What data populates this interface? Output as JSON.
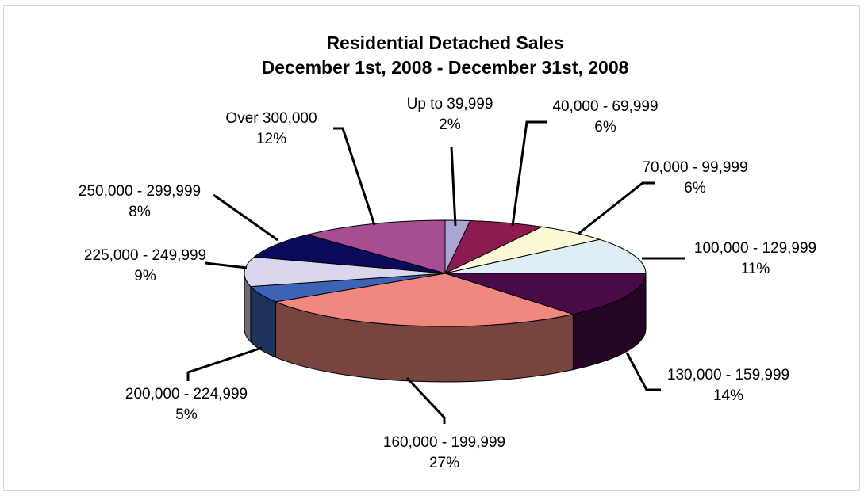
{
  "chart_data": {
    "type": "pie",
    "title": "Residential Detached Sales",
    "subtitle": "December 1st, 2008 - December 31st, 2008",
    "slices": [
      {
        "label": "Up to 39,999",
        "value": 2,
        "pct_label": "2%",
        "color": "#A9A6D6"
      },
      {
        "label": "40,000 - 69,999",
        "value": 6,
        "pct_label": "6%",
        "color": "#8E1A52"
      },
      {
        "label": "70,000 - 99,999",
        "value": 6,
        "pct_label": "6%",
        "color": "#FBF8D5"
      },
      {
        "label": "100,000 - 129,999",
        "value": 11,
        "pct_label": "11%",
        "color": "#DDEEF6"
      },
      {
        "label": "130,000 - 159,999",
        "value": 14,
        "pct_label": "14%",
        "color": "#4A0A48"
      },
      {
        "label": "160,000 - 199,999",
        "value": 27,
        "pct_label": "27%",
        "color": "#F08880"
      },
      {
        "label": "200,000 - 224,999",
        "value": 5,
        "pct_label": "5%",
        "color": "#3D63B5"
      },
      {
        "label": "225,000 - 249,999",
        "value": 9,
        "pct_label": "9%",
        "color": "#DAD7EC"
      },
      {
        "label": "250,000 - 299,999",
        "value": 8,
        "pct_label": "8%",
        "color": "#0B0A5C"
      },
      {
        "label": "Over 300,000",
        "value": 12,
        "pct_label": "12%",
        "color": "#A64D93"
      }
    ],
    "style": "3d-pie",
    "legend": "none"
  }
}
